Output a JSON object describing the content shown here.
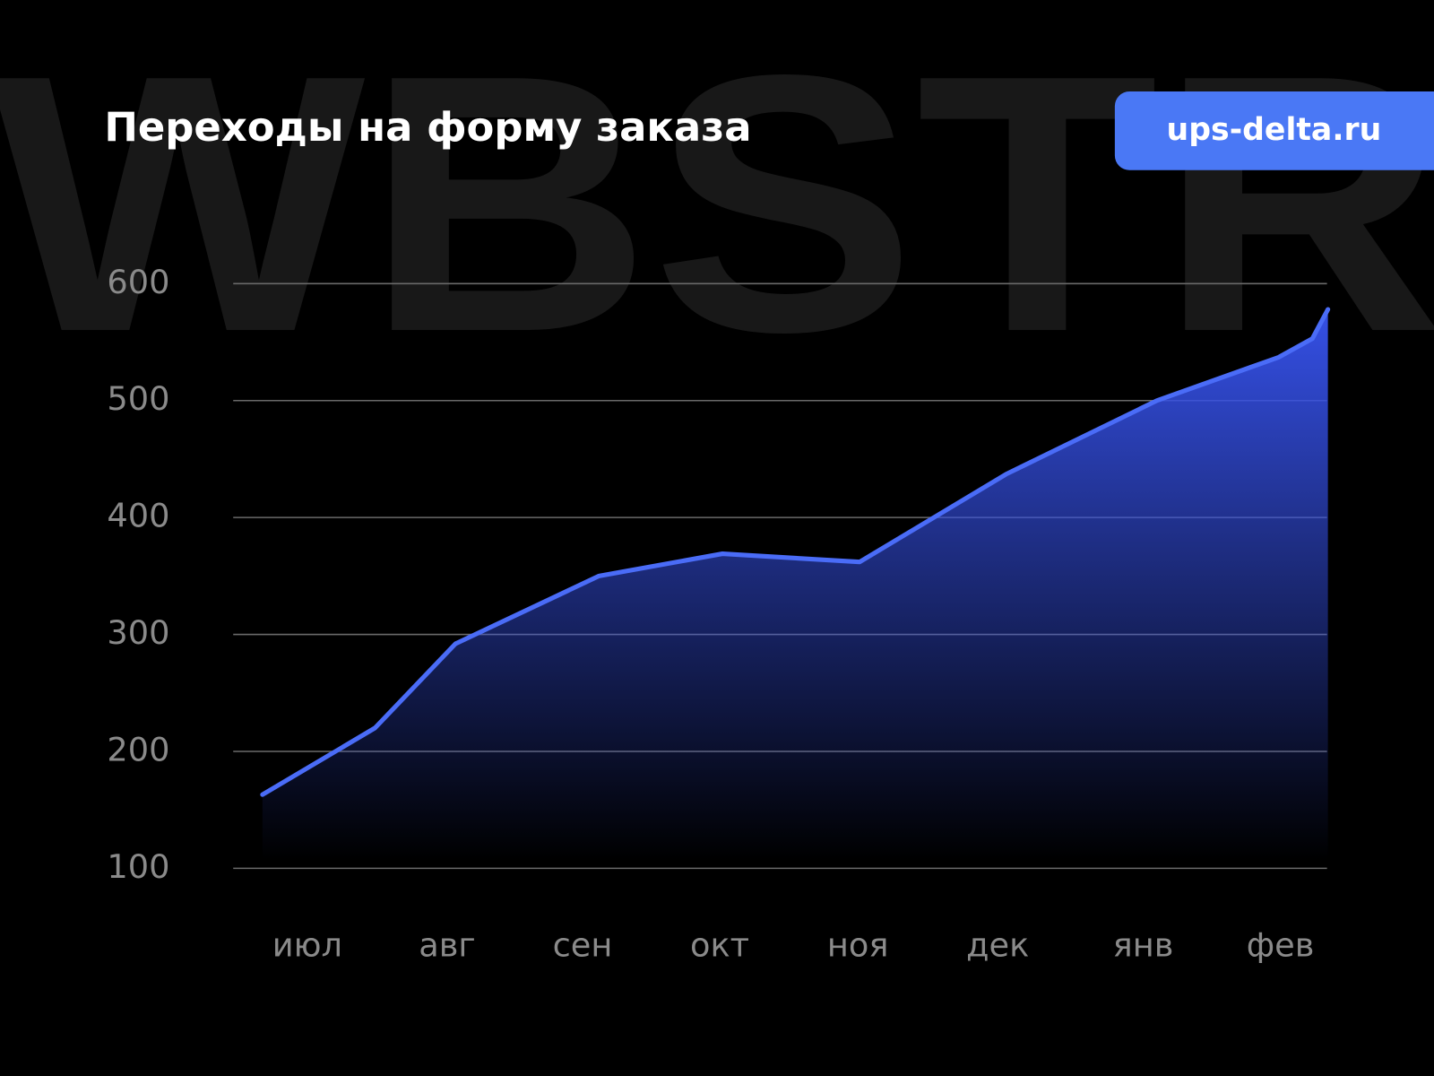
{
  "watermark": "WBSTR",
  "badge": "ups-delta.ru",
  "chart_data": {
    "type": "area",
    "title": "Переходы на форму заказа",
    "categories": [
      "июл",
      null,
      "авг",
      "сен",
      "окт",
      "ноя",
      "дек",
      "янв",
      "фев",
      null,
      null
    ],
    "values": [
      163,
      220,
      292,
      350,
      369,
      362,
      437,
      500,
      537,
      553,
      578
    ],
    "color": "#4a6cf7",
    "ylim": [
      100,
      600
    ],
    "yticks": [
      100,
      200,
      300,
      400,
      500,
      600
    ],
    "grid": true
  }
}
